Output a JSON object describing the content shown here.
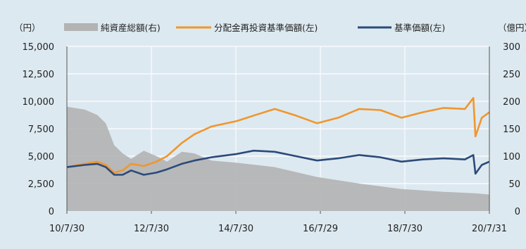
{
  "chart_data": {
    "type": "line",
    "left_axis_unit": "（円）",
    "right_axis_unit": "（億円）",
    "left_ticks": [
      "15,000",
      "12,500",
      "10,000",
      "7,500",
      "5,000",
      "2,500",
      "0"
    ],
    "right_ticks": [
      "300",
      "250",
      "200",
      "150",
      "100",
      "50",
      "0"
    ],
    "x_ticks": [
      "10/7/30",
      "12/7/30",
      "14/7/30",
      "16/7/29",
      "18/7/30",
      "20/7/31"
    ],
    "ylim_left": [
      0,
      15000
    ],
    "ylim_right": [
      0,
      300
    ],
    "xlim": [
      2010.58,
      2020.58
    ],
    "grid": true,
    "legend_position": "top",
    "colors": {
      "background": "#dde9f0",
      "grid": "#ffffff",
      "net_assets": "#b3b3b3",
      "reinvested_nav": "#f0962d",
      "nav": "#2b4a7a"
    },
    "series": [
      {
        "name": "純資産総額(右)",
        "axis": "right",
        "kind": "area",
        "x": [
          2010.58,
          2011.0,
          2011.3,
          2011.5,
          2011.7,
          2011.9,
          2012.1,
          2012.4,
          2012.7,
          2012.95,
          2013.3,
          2013.6,
          2014.0,
          2014.6,
          2015.5,
          2016.5,
          2017.5,
          2018.5,
          2019.5,
          2020.3,
          2020.58
        ],
        "values": [
          190,
          185,
          175,
          160,
          120,
          105,
          95,
          110,
          100,
          90,
          108,
          105,
          92,
          88,
          80,
          62,
          50,
          40,
          35,
          32,
          30
        ]
      },
      {
        "name": "分配金再投資基準価額(左)",
        "axis": "left",
        "kind": "line",
        "x": [
          2010.58,
          2011.0,
          2011.3,
          2011.5,
          2011.7,
          2011.9,
          2012.1,
          2012.4,
          2012.7,
          2012.95,
          2013.3,
          2013.6,
          2014.0,
          2014.6,
          2015.0,
          2015.5,
          2016.0,
          2016.5,
          2017.0,
          2017.5,
          2018.0,
          2018.5,
          2019.0,
          2019.5,
          2020.0,
          2020.2,
          2020.25,
          2020.4,
          2020.58
        ],
        "values": [
          4000,
          4300,
          4500,
          4200,
          3500,
          3700,
          4300,
          4100,
          4500,
          5000,
          6200,
          7000,
          7700,
          8200,
          8700,
          9300,
          8700,
          8000,
          8500,
          9300,
          9200,
          8500,
          9000,
          9400,
          9300,
          10300,
          6800,
          8500,
          9000
        ]
      },
      {
        "name": "基準価額(左)",
        "axis": "left",
        "kind": "line",
        "x": [
          2010.58,
          2011.0,
          2011.3,
          2011.5,
          2011.7,
          2011.9,
          2012.1,
          2012.4,
          2012.7,
          2012.95,
          2013.3,
          2013.6,
          2014.0,
          2014.6,
          2015.0,
          2015.5,
          2016.0,
          2016.5,
          2017.0,
          2017.5,
          2018.0,
          2018.5,
          2019.0,
          2019.5,
          2020.0,
          2020.2,
          2020.25,
          2020.4,
          2020.58
        ],
        "values": [
          4000,
          4200,
          4300,
          4000,
          3300,
          3300,
          3700,
          3300,
          3500,
          3800,
          4300,
          4600,
          4900,
          5200,
          5500,
          5400,
          5000,
          4600,
          4800,
          5100,
          4900,
          4500,
          4700,
          4800,
          4700,
          5100,
          3400,
          4200,
          4500
        ]
      }
    ]
  }
}
